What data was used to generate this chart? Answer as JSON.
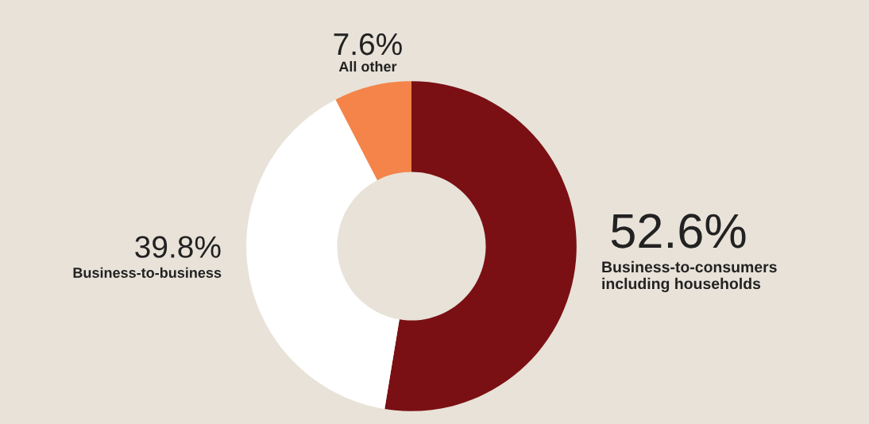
{
  "chart_data": {
    "type": "donut",
    "categories": [
      "Business-to-consumers\nincluding households",
      "Business-to-business",
      "All other"
    ],
    "values": [
      52.6,
      39.8,
      7.6
    ],
    "colors": [
      "#7a1014",
      "#ffffff",
      "#f4844a"
    ],
    "value_labels": [
      "52.6%",
      "39.8%",
      "7.6%"
    ],
    "legend": false
  }
}
